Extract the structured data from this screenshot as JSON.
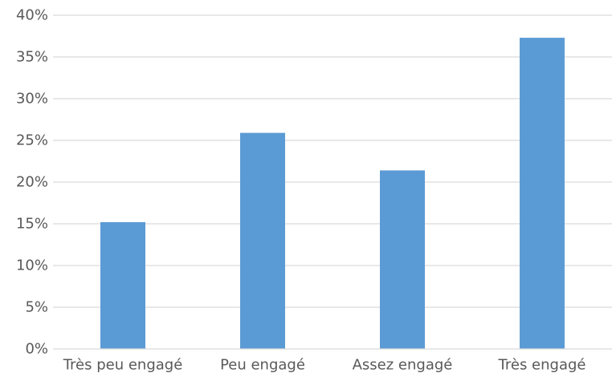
{
  "chart_data": {
    "type": "bar",
    "categories": [
      "Très peu engagé",
      "Peu engagé",
      "Assez engagé",
      "Très engagé"
    ],
    "values": [
      15.2,
      25.9,
      21.4,
      37.3
    ],
    "ylim": [
      0,
      40
    ],
    "yticks": [
      0,
      5,
      10,
      15,
      20,
      25,
      30,
      35,
      40
    ],
    "ytick_format": "%",
    "grid": true,
    "bar_color": "#5B9BD5",
    "grid_color": "#D9D9D9",
    "axis_text_color": "#595959"
  }
}
